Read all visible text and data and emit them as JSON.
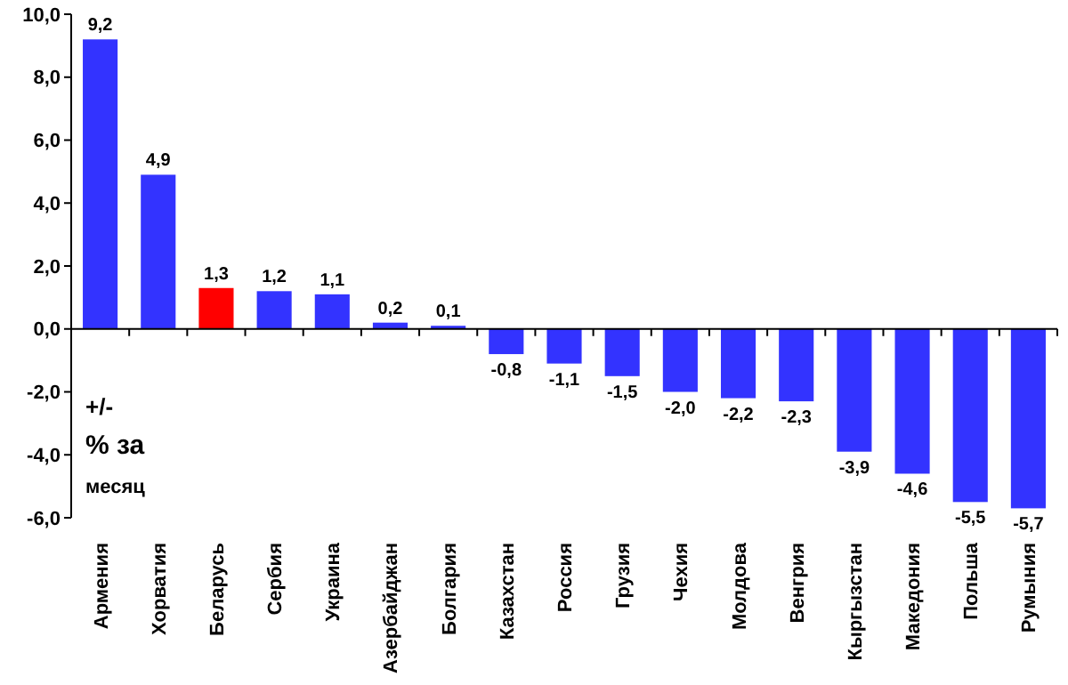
{
  "chart_data": {
    "type": "bar",
    "categories": [
      "Армения",
      "Хорватия",
      "Беларусь",
      "Сербия",
      "Украина",
      "Азербайджан",
      "Болгария",
      "Казахстан",
      "Россия",
      "Грузия",
      "Чехия",
      "Молдова",
      "Венгрия",
      "Кыргызстан",
      "Македония",
      "Польша",
      "Румыния"
    ],
    "values": [
      9.2,
      4.9,
      1.3,
      1.2,
      1.1,
      0.2,
      0.1,
      -0.8,
      -1.1,
      -1.5,
      -2.0,
      -2.2,
      -2.3,
      -3.9,
      -4.6,
      -5.5,
      -5.7
    ],
    "colors": [
      "#3333ff",
      "#3333ff",
      "#ff0000",
      "#3333ff",
      "#3333ff",
      "#3333ff",
      "#3333ff",
      "#3333ff",
      "#3333ff",
      "#3333ff",
      "#3333ff",
      "#3333ff",
      "#3333ff",
      "#3333ff",
      "#3333ff",
      "#3333ff",
      "#3333ff"
    ],
    "value_labels": [
      "9,2",
      "4,9",
      "1,3",
      "1,2",
      "1,1",
      "0,2",
      "0,1",
      "-0,8",
      "-1,1",
      "-1,5",
      "-2,0",
      "-2,2",
      "-2,3",
      "-3,9",
      "-4,6",
      "-5,5",
      "-5,7"
    ],
    "ylim": [
      -6,
      10
    ],
    "yticks": [
      {
        "value": -6,
        "label": "-6,0"
      },
      {
        "value": -4,
        "label": "-4,0"
      },
      {
        "value": -2,
        "label": "-2,0"
      },
      {
        "value": 0,
        "label": "0,0"
      },
      {
        "value": 2,
        "label": "2,0"
      },
      {
        "value": 4,
        "label": "4,0"
      },
      {
        "value": 6,
        "label": "6,0"
      },
      {
        "value": 8,
        "label": "8,0"
      },
      {
        "value": 10,
        "label": "10,0"
      }
    ],
    "annotations": [
      "+/-",
      "% за",
      "месяц"
    ]
  }
}
